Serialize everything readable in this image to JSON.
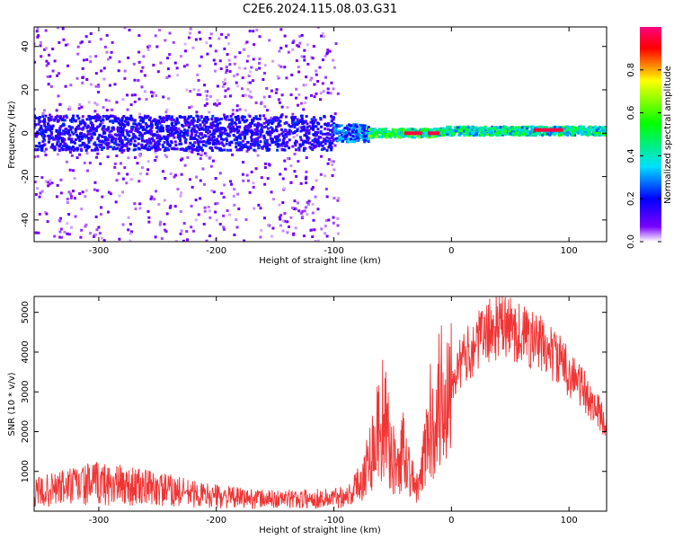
{
  "figure": {
    "title": "C2E6.2024.115.08.03.G31"
  },
  "chart_data": [
    {
      "type": "heatmap",
      "xlabel": "Height of straight line (km)",
      "ylabel": "Frequency (Hz)",
      "xlim": [
        -355,
        132
      ],
      "ylim": [
        -50,
        49
      ],
      "xticks": [
        -300,
        -200,
        -100,
        0,
        100
      ],
      "xtick_labels": [
        "-300",
        "-200",
        "-100",
        "0",
        "100"
      ],
      "yticks": [
        -40,
        -20,
        0,
        20,
        40
      ],
      "ytick_labels": [
        "-40",
        "-20",
        "0",
        "20",
        "40"
      ],
      "colorbar": {
        "label": "Normalized spectral amplitude",
        "range": [
          0,
          1
        ],
        "ticks": [
          0.0,
          0.2,
          0.4,
          0.6,
          0.8
        ],
        "tick_labels": [
          "0.0",
          "0.2",
          "0.4",
          "0.6",
          "0.8"
        ],
        "colormap": [
          "#ffffff",
          "#7a00ff",
          "#0000ff",
          "#00e0ff",
          "#00ff00",
          "#ffff00",
          "#ff0000",
          "#ff0080"
        ]
      },
      "bands": [
        {
          "x_from": -355,
          "x_to": -100,
          "center_hz": 0,
          "halfwidth_hz": 8,
          "amplitude": 0.2
        },
        {
          "x_from": -100,
          "x_to": -70,
          "center_hz": 0,
          "halfwidth_hz": 4,
          "amplitude": 0.3
        },
        {
          "x_from": -70,
          "x_to": -10,
          "center_hz": 0,
          "halfwidth_hz": 2,
          "amplitude": 0.55
        },
        {
          "x_from": -10,
          "x_to": 132,
          "center_hz": 1,
          "halfwidth_hz": 2,
          "amplitude": 0.5
        }
      ],
      "peaks": [
        {
          "x_from": -40,
          "x_to": -25,
          "freq_hz": 0,
          "amplitude": 0.95
        },
        {
          "x_from": -20,
          "x_to": -10,
          "freq_hz": 0,
          "amplitude": 0.95
        },
        {
          "x_from": 70,
          "x_to": 95,
          "freq_hz": 1.5,
          "amplitude": 0.95
        }
      ]
    },
    {
      "type": "line",
      "xlabel": "Height of straight line (km)",
      "ylabel": "SNR (10 * v/v)",
      "xlim": [
        -355,
        132
      ],
      "ylim": [
        0,
        5400
      ],
      "xticks": [
        -300,
        -200,
        -100,
        0,
        100
      ],
      "xtick_labels": [
        "-300",
        "-200",
        "-100",
        "0",
        "100"
      ],
      "yticks": [
        1000,
        2000,
        3000,
        4000,
        5000
      ],
      "ytick_labels": [
        "1000",
        "2000",
        "3000",
        "4000",
        "5000"
      ],
      "series": [
        {
          "color": "#f03535",
          "x": [
            -355,
            -330,
            -300,
            -270,
            -240,
            -210,
            -180,
            -150,
            -120,
            -100,
            -85,
            -75,
            -65,
            -58,
            -52,
            -45,
            -40,
            -35,
            -28,
            -20,
            -12,
            -5,
            0,
            10,
            20,
            30,
            40,
            50,
            60,
            70,
            80,
            90,
            100,
            110,
            120,
            132
          ],
          "y": [
            450,
            600,
            700,
            620,
            520,
            400,
            330,
            300,
            310,
            330,
            450,
            900,
            1800,
            2400,
            1500,
            1000,
            1800,
            900,
            500,
            2000,
            2700,
            3000,
            3400,
            3800,
            4200,
            4500,
            4650,
            4600,
            4450,
            4300,
            4100,
            3850,
            3500,
            3150,
            2700,
            2200
          ]
        }
      ]
    }
  ]
}
